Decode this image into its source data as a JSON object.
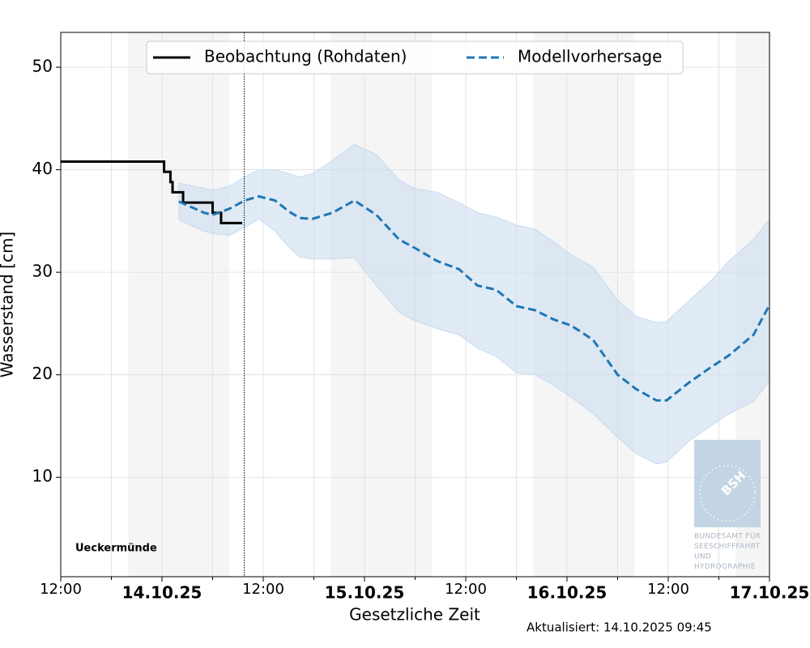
{
  "chart_data": {
    "type": "line",
    "xlabel": "Gesetzliche Zeit",
    "ylabel": "Wasserstand [cm]",
    "station": "Ueckermünde",
    "updated": "Aktualisiert: 14.10.2025 09:45",
    "logo": {
      "abbr": "BSH",
      "lines": [
        "BUNDESAMT FÜR",
        "SEESCHIFFFAHRT",
        "UND",
        "HYDROGRAPHIE"
      ]
    },
    "xlim": [
      0,
      84
    ],
    "ylim": [
      0.3,
      53.4
    ],
    "yticks": [
      10,
      20,
      30,
      40,
      50
    ],
    "xticks": [
      {
        "value": 0,
        "label": "12:00"
      },
      {
        "value": 24,
        "label": "12:00"
      },
      {
        "value": 48,
        "label": "12:00"
      },
      {
        "value": 72,
        "label": "12:00"
      }
    ],
    "date_ticks": [
      {
        "value": 12,
        "label": "14.10.25"
      },
      {
        "value": 36,
        "label": "15.10.25"
      },
      {
        "value": 60,
        "label": "16.10.25"
      },
      {
        "value": 84,
        "label": "17.10.25"
      }
    ],
    "minor_xticks": [
      6,
      18,
      30,
      42,
      54,
      66,
      78
    ],
    "grid": true,
    "now": 21.75,
    "shaded_spans": [
      [
        8,
        20
      ],
      [
        32,
        44
      ],
      [
        56,
        68
      ],
      [
        80,
        84
      ]
    ],
    "legend": "upper center",
    "series": [
      {
        "name": "Beobachtung (Rohdaten)",
        "color": "#000000",
        "style": "step",
        "x": [
          0,
          12.25,
          13,
          13.25,
          14.5,
          18,
          19,
          21.5
        ],
        "values": [
          40.8,
          39.8,
          38.8,
          37.8,
          36.8,
          35.8,
          34.8,
          34.8
        ]
      },
      {
        "name": "Modellvorhersage",
        "color": "#1f77b4",
        "style": "dashed",
        "band_color": "#c6dbef",
        "x": [
          14.0,
          17.0,
          18.0,
          20.0,
          21.8,
          23.5,
          25.4,
          27.1,
          28.3,
          29.8,
          32.2,
          34.8,
          37.4,
          40.1,
          41.9,
          44.6,
          47.2,
          49.4,
          51.6,
          54.0,
          56.2,
          58.4,
          60.5,
          63.1,
          66.0,
          68.2,
          70.6,
          71.8,
          74.4,
          77.0,
          79.2,
          82.1,
          84.0
        ],
        "values": [
          36.9,
          35.8,
          35.6,
          36.2,
          37.0,
          37.4,
          37.0,
          35.9,
          35.3,
          35.2,
          35.8,
          37.0,
          35.6,
          33.2,
          32.4,
          31.1,
          30.3,
          28.7,
          28.3,
          26.7,
          26.3,
          25.4,
          24.8,
          23.4,
          20.0,
          18.6,
          17.5,
          17.5,
          19.2,
          20.7,
          21.9,
          23.9,
          26.8
        ],
        "upper": [
          38.7,
          38.2,
          38.0,
          38.4,
          39.3,
          40.0,
          40.0,
          39.6,
          39.3,
          39.6,
          40.9,
          42.5,
          41.5,
          39.0,
          38.2,
          37.8,
          36.8,
          35.8,
          35.4,
          34.6,
          34.2,
          33.0,
          31.7,
          30.5,
          27.3,
          25.7,
          25.1,
          25.2,
          27.2,
          29.1,
          31.1,
          33.2,
          35.2
        ],
        "lower": [
          35.1,
          34.0,
          33.8,
          33.6,
          34.4,
          35.2,
          34.0,
          32.4,
          31.5,
          31.3,
          31.3,
          31.4,
          28.7,
          26.1,
          25.3,
          24.5,
          23.9,
          22.6,
          21.8,
          20.2,
          20.0,
          19.0,
          17.8,
          16.2,
          13.9,
          12.3,
          11.3,
          11.5,
          13.5,
          15.0,
          16.2,
          17.4,
          19.4
        ]
      }
    ]
  }
}
